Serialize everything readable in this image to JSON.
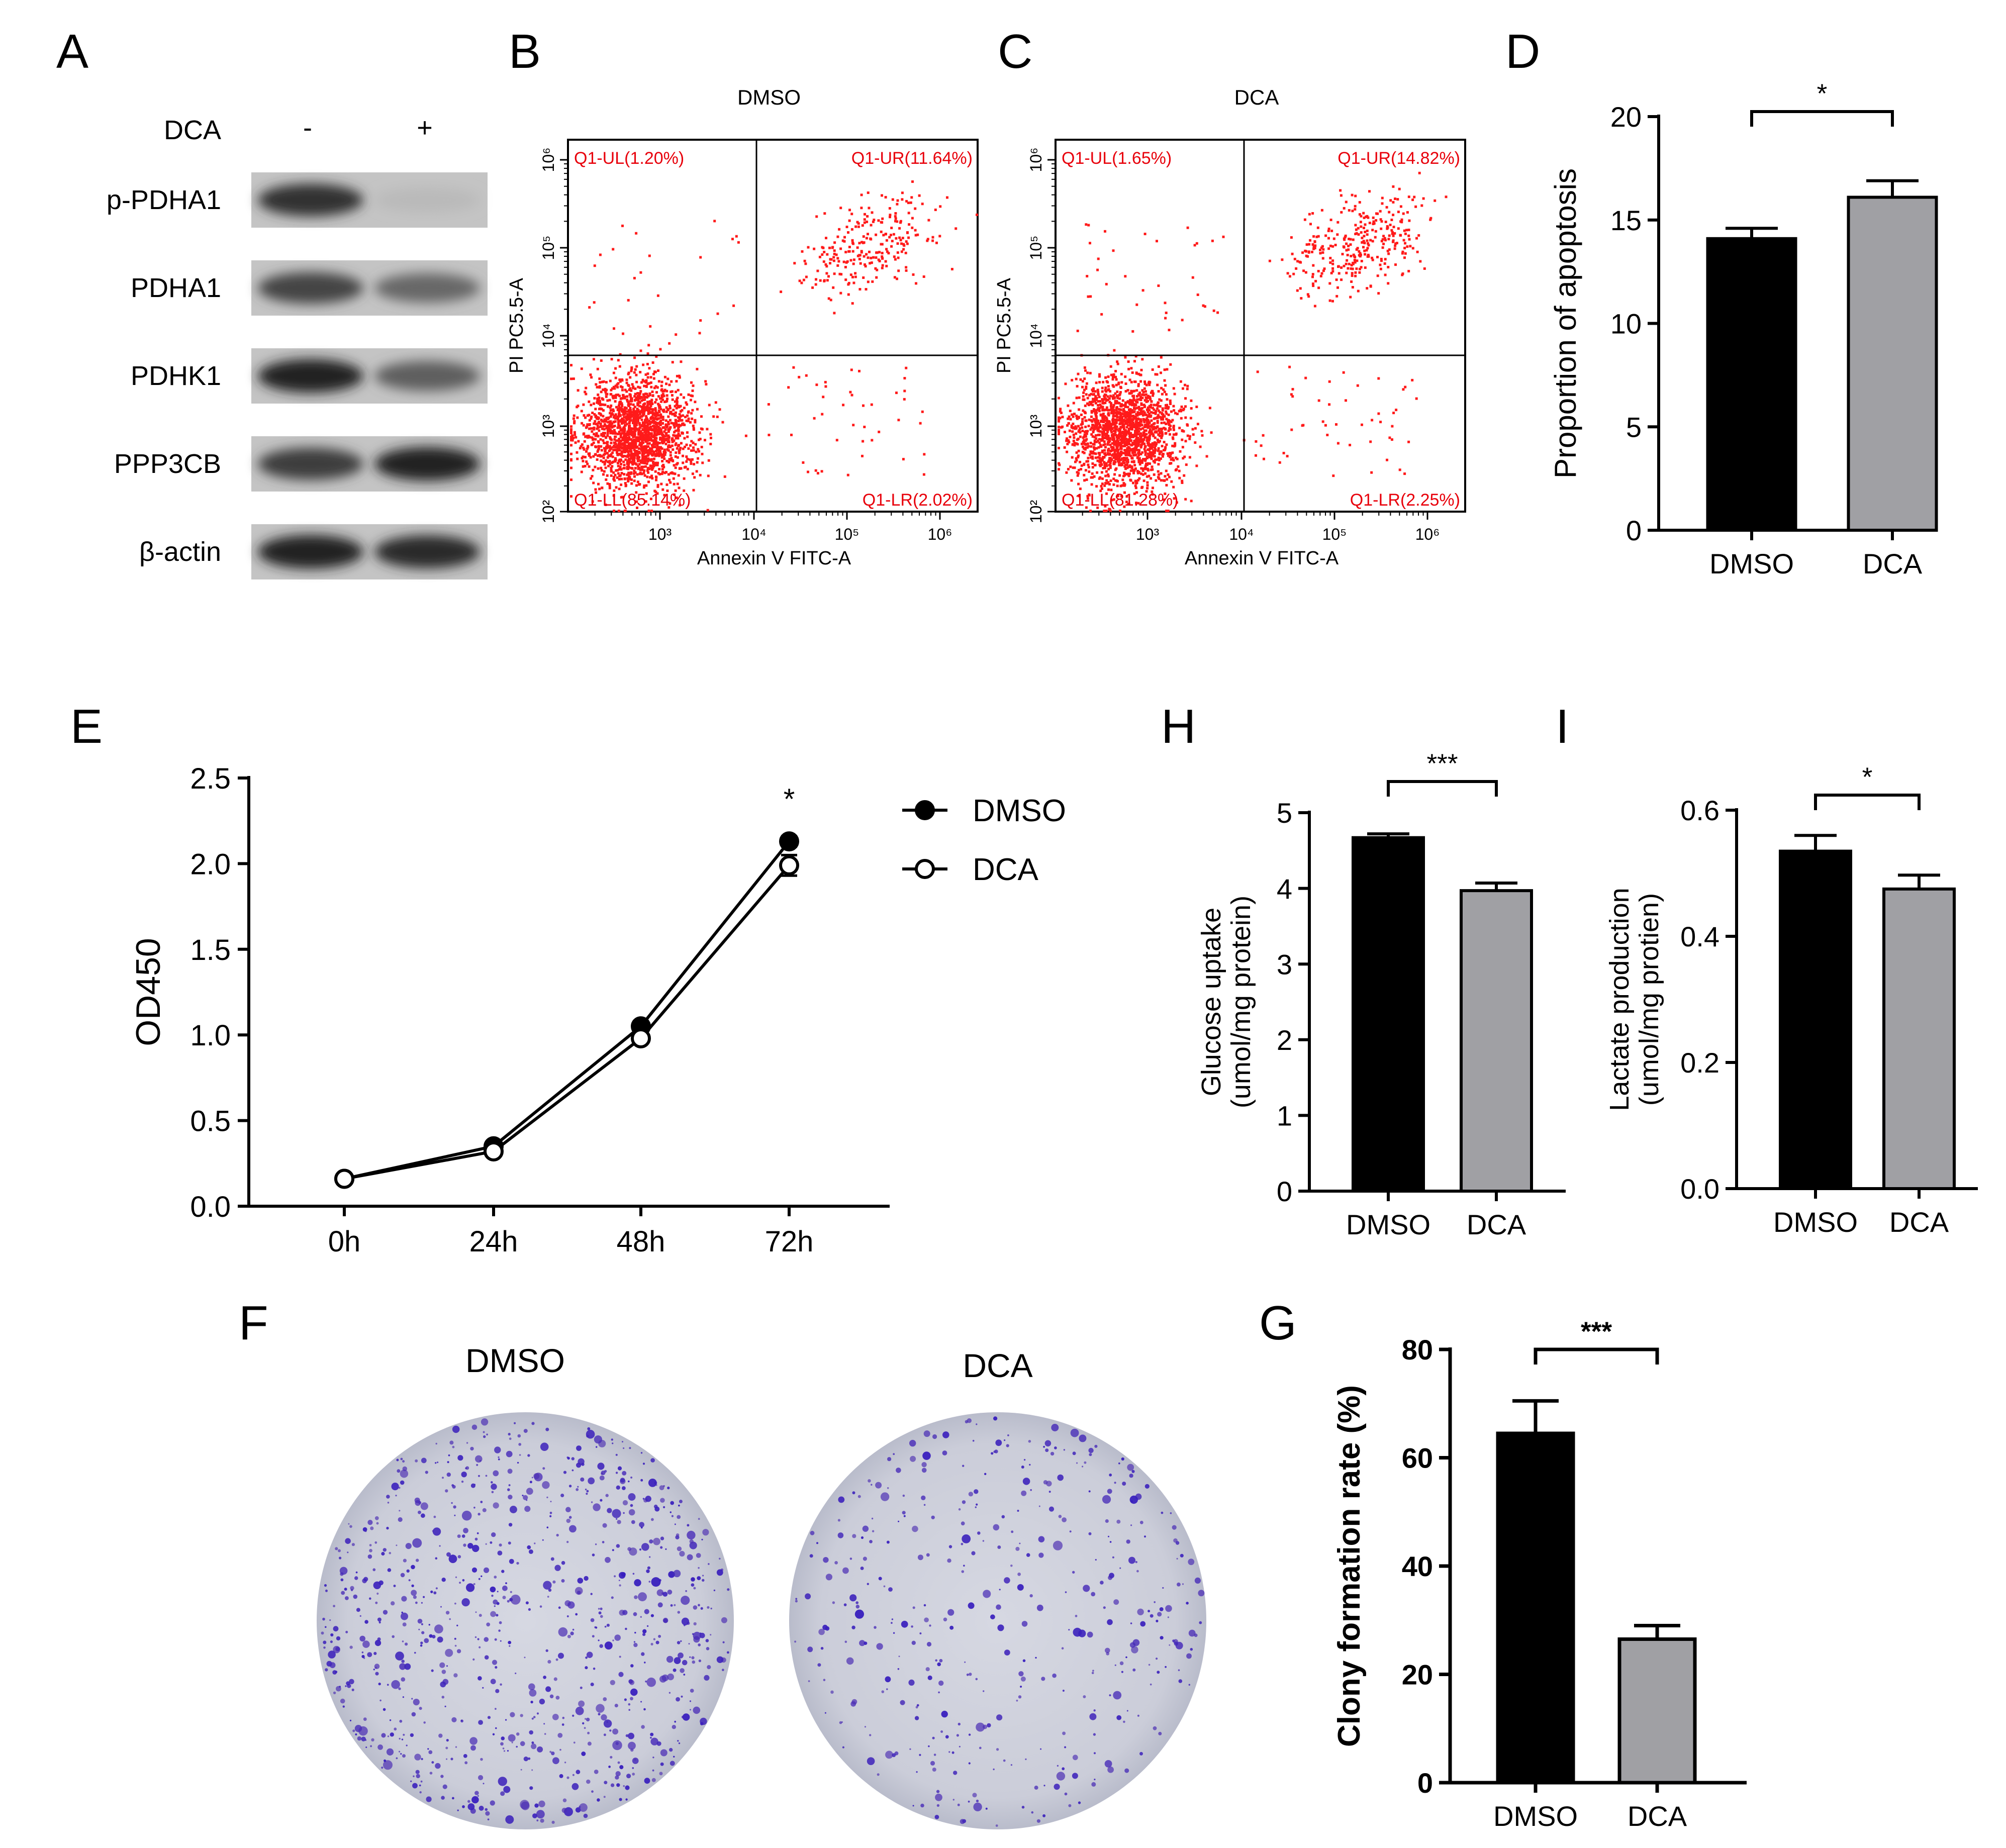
{
  "panels": {
    "A": {
      "letter": "A",
      "treatment_label": "DCA",
      "lanes": [
        "-",
        "+"
      ],
      "bands": [
        {
          "protein": "p-PDHA1",
          "intensity": [
            0.85,
            0.08
          ]
        },
        {
          "protein": "PDHA1",
          "intensity": [
            0.75,
            0.55
          ]
        },
        {
          "protein": "PDHK1",
          "intensity": [
            0.95,
            0.6
          ]
        },
        {
          "protein": "PPP3CB",
          "intensity": [
            0.8,
            0.95
          ]
        },
        {
          "protein": "β-actin",
          "intensity": [
            0.95,
            0.9
          ]
        }
      ]
    },
    "B": {
      "letter": "B",
      "title": "DMSO",
      "xlabel": "Annexin V FITC-A",
      "ylabel": "PI PC5.5-A",
      "quadrants": {
        "UL": "Q1-UL(1.20%)",
        "UR": "Q1-UR(11.64%)",
        "LL": "Q1-LL(85.14%)",
        "LR": "Q1-LR(2.02%)"
      }
    },
    "C": {
      "letter": "C",
      "title": "DCA",
      "xlabel": "Annexin V FITC-A",
      "ylabel": "PI PC5.5-A",
      "quadrants": {
        "UL": "Q1-UL(1.65%)",
        "UR": "Q1-UR(14.82%)",
        "LL": "Q1-LL(81.28%)",
        "LR": "Q1-LR(2.25%)"
      }
    },
    "D": {
      "letter": "D",
      "ylabel": "Proportion of apoptosis",
      "sig": "*"
    },
    "E": {
      "letter": "E",
      "ylabel": "OD450",
      "sig": "*"
    },
    "F": {
      "letter": "F",
      "labels": [
        "DMSO",
        "DCA"
      ],
      "colony_density": [
        1.0,
        0.45
      ]
    },
    "G": {
      "letter": "G",
      "ylabel": "Clony formation rate (%)",
      "sig": "***"
    },
    "H": {
      "letter": "H",
      "ylabel": [
        "Glucose uptake",
        "(umol/mg protein)"
      ],
      "sig": "***"
    },
    "I": {
      "letter": "I",
      "ylabel": [
        "Lactate production",
        "(umol/mg protien)"
      ],
      "sig": "*"
    }
  },
  "chart_data": [
    {
      "id": "B",
      "type": "scatter",
      "title": "DMSO",
      "xlabel": "Annexin V FITC-A",
      "ylabel": "PI PC5.5-A",
      "log_scale": true,
      "x_ticks": [
        "10³",
        "10⁴",
        "10⁵",
        "10⁶"
      ],
      "y_ticks": [
        "10²",
        "10³",
        "10⁴",
        "10⁵",
        "10⁶"
      ],
      "quadrant_percent": {
        "UL": 1.2,
        "UR": 11.64,
        "LL": 85.14,
        "LR": 2.02
      }
    },
    {
      "id": "C",
      "type": "scatter",
      "title": "DCA",
      "xlabel": "Annexin V FITC-A",
      "ylabel": "PI PC5.5-A",
      "log_scale": true,
      "x_ticks": [
        "10³",
        "10⁴",
        "10⁵",
        "10⁶"
      ],
      "y_ticks": [
        "10²",
        "10³",
        "10⁴",
        "10⁵",
        "10⁶"
      ],
      "quadrant_percent": {
        "UL": 1.65,
        "UR": 14.82,
        "LL": 81.28,
        "LR": 2.25
      }
    },
    {
      "id": "D",
      "type": "bar",
      "categories": [
        "DMSO",
        "DCA"
      ],
      "values": [
        14.1,
        16.1
      ],
      "errors": [
        0.5,
        0.8
      ],
      "colors": [
        "#000000",
        "#a0a0a4"
      ],
      "ylabel": "Proportion of apoptosis",
      "ylim": [
        0,
        20
      ],
      "yticks": [
        0,
        5,
        10,
        15,
        20
      ],
      "significance": "*"
    },
    {
      "id": "E",
      "type": "line",
      "x": [
        "0h",
        "24h",
        "48h",
        "72h"
      ],
      "series": [
        {
          "name": "DMSO",
          "values": [
            0.16,
            0.35,
            1.05,
            2.13
          ],
          "errors": [
            0.01,
            0.02,
            0.03,
            0.03
          ],
          "marker": "filled"
        },
        {
          "name": "DCA",
          "values": [
            0.16,
            0.32,
            0.98,
            1.99
          ],
          "errors": [
            0.01,
            0.02,
            0.02,
            0.06
          ],
          "marker": "open"
        }
      ],
      "ylabel": "OD450",
      "ylim": [
        0,
        2.5
      ],
      "yticks": [
        "0.0",
        "0.5",
        "1.0",
        "1.5",
        "2.0",
        "2.5"
      ],
      "significance": "*",
      "legend": "right"
    },
    {
      "id": "G",
      "type": "bar",
      "categories": [
        "DMSO",
        "DCA"
      ],
      "values": [
        64.5,
        26.5
      ],
      "errors": [
        6.0,
        2.5
      ],
      "colors": [
        "#000000",
        "#a0a0a4"
      ],
      "ylabel": "Clony formation rate (%)",
      "ylim": [
        0,
        80
      ],
      "yticks": [
        0,
        20,
        40,
        60,
        80
      ],
      "significance": "***"
    },
    {
      "id": "H",
      "type": "bar",
      "categories": [
        "DMSO",
        "DCA"
      ],
      "values": [
        4.67,
        3.97
      ],
      "errors": [
        0.05,
        0.1
      ],
      "colors": [
        "#000000",
        "#a0a0a4"
      ],
      "ylabel": "Glucose uptake (umol/mg protein)",
      "ylim": [
        0,
        5
      ],
      "yticks": [
        0,
        1,
        2,
        3,
        4,
        5
      ],
      "significance": "***"
    },
    {
      "id": "I",
      "type": "bar",
      "categories": [
        "DMSO",
        "DCA"
      ],
      "values": [
        0.535,
        0.475
      ],
      "errors": [
        0.025,
        0.022
      ],
      "colors": [
        "#000000",
        "#a0a0a4"
      ],
      "ylabel": "Lactate production (umol/mg protien)",
      "ylim": [
        0,
        0.6
      ],
      "yticks": [
        "0.0",
        "0.2",
        "0.4",
        "0.6"
      ],
      "significance": "*"
    }
  ]
}
